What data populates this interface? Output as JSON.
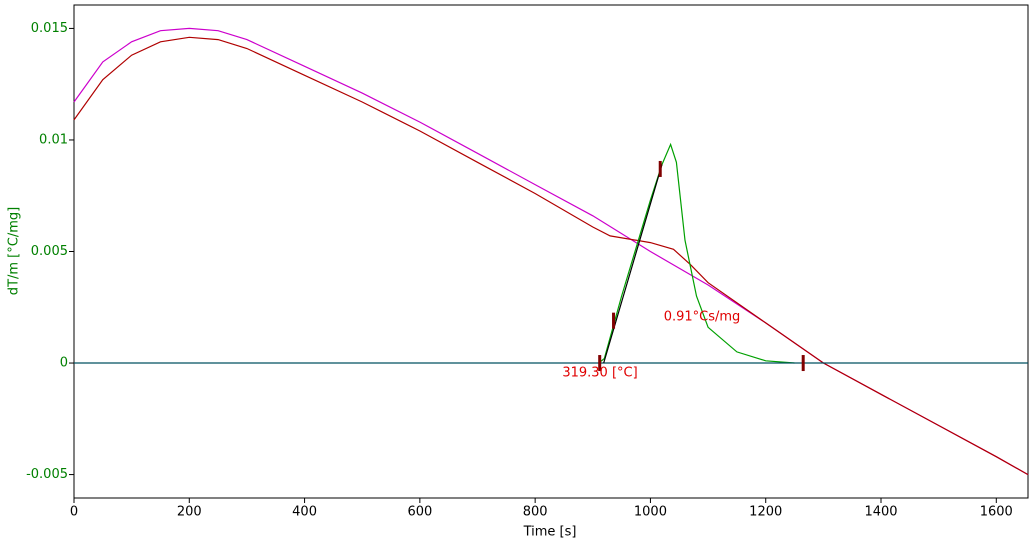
{
  "chart_data": {
    "type": "line",
    "xlabel": "Time [s]",
    "ylabel": "dT/m  [°C/mg]",
    "xlim": [
      0,
      1655
    ],
    "ylim": [
      -0.00605,
      0.01605
    ],
    "xticks": [
      0,
      200,
      400,
      600,
      800,
      1000,
      1200,
      1400,
      1600
    ],
    "yticks": [
      -0.005,
      0,
      0.005,
      0.01,
      0.015
    ],
    "series": [
      {
        "color": "#cc00cc",
        "x": [
          0,
          50,
          100,
          150,
          200,
          250,
          300,
          400,
          500,
          600,
          700,
          800,
          900,
          1000,
          1100,
          1200,
          1300,
          1400,
          1500,
          1600,
          1655
        ],
        "values": [
          0.0117,
          0.0135,
          0.0144,
          0.0149,
          0.015,
          0.0149,
          0.0145,
          0.0133,
          0.0121,
          0.0108,
          0.0094,
          0.008,
          0.0066,
          0.005,
          0.0035,
          0.0018,
          0,
          -0.0014,
          -0.0028,
          -0.0042,
          -0.005
        ]
      },
      {
        "color": "#b00000",
        "x": [
          0,
          50,
          100,
          150,
          200,
          250,
          300,
          400,
          500,
          600,
          700,
          800,
          900,
          930,
          1000,
          1040,
          1070,
          1100,
          1200,
          1300,
          1400,
          1500,
          1600,
          1655
        ],
        "values": [
          0.0109,
          0.0127,
          0.0138,
          0.0144,
          0.0146,
          0.0145,
          0.0141,
          0.0129,
          0.0117,
          0.0104,
          0.009,
          0.0076,
          0.0061,
          0.0057,
          0.0054,
          0.0051,
          0.0044,
          0.0036,
          0.0018,
          0,
          -0.0014,
          -0.0028,
          -0.0042,
          -0.005
        ]
      },
      {
        "color": "#00a000",
        "x": [
          910,
          920,
          950,
          1000,
          1020,
          1035,
          1045,
          1060,
          1080,
          1100,
          1150,
          1200,
          1250
        ],
        "values": [
          0,
          0.0002,
          0.003,
          0.0073,
          0.0089,
          0.0098,
          0.009,
          0.0055,
          0.003,
          0.0016,
          0.0005,
          0.0001,
          0
        ]
      },
      {
        "color": "#005060",
        "x": [
          0,
          1655
        ],
        "values": [
          0,
          0
        ]
      },
      {
        "color": "#000000",
        "x": [
          919,
          1020
        ],
        "values": [
          0,
          0.0089
        ]
      }
    ],
    "markers": {
      "color": "#800000",
      "x": [
        912,
        936,
        1017,
        1265
      ],
      "values": [
        0,
        0.0019,
        0.0087,
        0
      ]
    },
    "annotations": [
      {
        "text": "319.30 [°C]",
        "color": "#e00000"
      },
      {
        "text": "0.91°Cs/mg",
        "color": "#e00000"
      }
    ]
  }
}
